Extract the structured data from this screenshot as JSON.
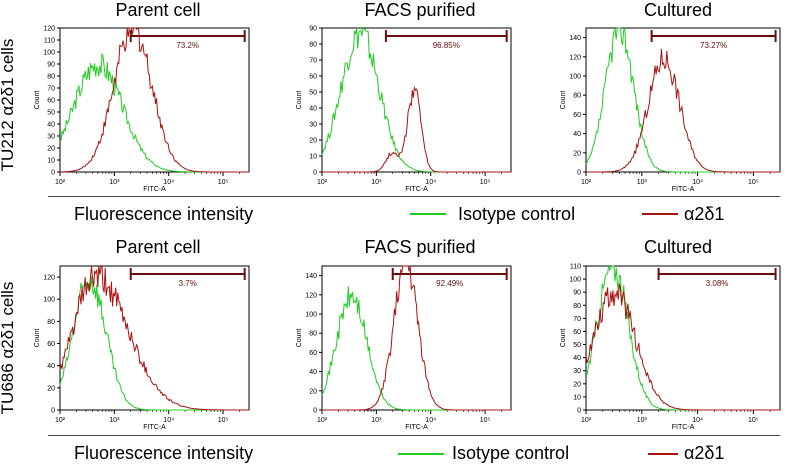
{
  "row_labels": [
    "TU212  α2δ1 cells",
    "TU686  α2δ1 cells"
  ],
  "legend": {
    "xlabel": "Fluorescence intensity",
    "isotype": "Isotype control",
    "marker": "α2δ1",
    "isotype_color": "#22cc22",
    "marker_color": "#aa1111"
  },
  "chart_data": [
    {
      "type": "area",
      "title": "Parent cell",
      "row": "TU212",
      "xlabel": "FITC-A",
      "ylabel": "Count",
      "xscale": "log",
      "xlim": [
        100,
        300000
      ],
      "ylim": [
        0,
        120
      ],
      "yticks": [
        0,
        10,
        20,
        30,
        40,
        50,
        60,
        70,
        80,
        90,
        100,
        110,
        120
      ],
      "xticks": [
        "10²",
        "10³",
        "10⁴",
        "10⁵"
      ],
      "gate": {
        "from": 2000,
        "to": 250000,
        "label": "73.2%"
      },
      "series": [
        {
          "name": "Isotype control",
          "peak_x": 500,
          "peak_y": 90,
          "width": 0.45
        },
        {
          "name": "α2δ1",
          "peak_x": 2200,
          "peak_y": 120,
          "width": 0.35
        }
      ]
    },
    {
      "type": "area",
      "title": "FACS purified",
      "row": "TU212",
      "xlabel": "FITC-A",
      "ylabel": "Count",
      "xscale": "log",
      "xlim": [
        100,
        300000
      ],
      "ylim": [
        0,
        90
      ],
      "yticks": [
        0,
        10,
        20,
        30,
        40,
        50,
        60,
        70,
        80,
        90
      ],
      "xticks": [
        "10²",
        "10³",
        "10⁴",
        "10⁵"
      ],
      "gate": {
        "from": 1500,
        "to": 250000,
        "label": "96.85%"
      },
      "series": [
        {
          "name": "Isotype control",
          "peak_x": 500,
          "peak_y": 87,
          "width": 0.35
        },
        {
          "name": "α2δ1",
          "peak_x": 5000,
          "peak_y": 52,
          "width": 0.12
        }
      ]
    },
    {
      "type": "area",
      "title": "Cultured",
      "row": "TU212",
      "xlabel": "FITC-A",
      "ylabel": "Count",
      "xscale": "log",
      "xlim": [
        100,
        300000
      ],
      "ylim": [
        0,
        150
      ],
      "yticks": [
        0,
        20,
        40,
        60,
        80,
        100,
        120,
        140
      ],
      "xticks": [
        "10²",
        "10³",
        "10⁴",
        "10⁵"
      ],
      "gate": {
        "from": 1500,
        "to": 250000,
        "label": "73.27%"
      },
      "series": [
        {
          "name": "Isotype control",
          "peak_x": 400,
          "peak_y": 150,
          "width": 0.25
        },
        {
          "name": "α2δ1",
          "peak_x": 2500,
          "peak_y": 118,
          "width": 0.28
        }
      ]
    },
    {
      "type": "area",
      "title": "Parent cell",
      "row": "TU686",
      "xlabel": "FITC-A",
      "ylabel": "Count",
      "xscale": "log",
      "xlim": [
        100,
        300000
      ],
      "ylim": [
        0,
        130
      ],
      "yticks": [
        0,
        20,
        40,
        60,
        80,
        100,
        120
      ],
      "xticks": [
        "10²",
        "10³",
        "10⁴",
        "10⁵"
      ],
      "gate": {
        "from": 2000,
        "to": 250000,
        "label": "3.7%"
      },
      "series": [
        {
          "name": "Isotype control",
          "peak_x": 350,
          "peak_y": 118,
          "width": 0.3
        },
        {
          "name": "α2δ1",
          "peak_x": 450,
          "peak_y": 120,
          "width": 0.42
        }
      ]
    },
    {
      "type": "area",
      "title": "FACS purified",
      "row": "TU686",
      "xlabel": "FITC-A",
      "ylabel": "Count",
      "xscale": "log",
      "xlim": [
        100,
        300000
      ],
      "ylim": [
        0,
        150
      ],
      "yticks": [
        0,
        20,
        40,
        60,
        80,
        100,
        120,
        140
      ],
      "xticks": [
        "10²",
        "10³",
        "10⁴",
        "10⁵"
      ],
      "gate": {
        "from": 2000,
        "to": 250000,
        "label": "92.49%"
      },
      "series": [
        {
          "name": "Isotype control",
          "peak_x": 350,
          "peak_y": 118,
          "width": 0.28
        },
        {
          "name": "α2δ1",
          "peak_x": 3500,
          "peak_y": 152,
          "width": 0.22
        }
      ]
    },
    {
      "type": "area",
      "title": "Cultured",
      "row": "TU686",
      "xlabel": "FITC-A",
      "ylabel": "Count",
      "xscale": "log",
      "xlim": [
        100,
        300000
      ],
      "ylim": [
        0,
        110
      ],
      "yticks": [
        0,
        10,
        20,
        30,
        40,
        50,
        60,
        70,
        80,
        90,
        100,
        110
      ],
      "xticks": [
        "10²",
        "10³",
        "10⁴",
        "10⁵"
      ],
      "gate": {
        "from": 2000,
        "to": 250000,
        "label": "3.08%"
      },
      "series": [
        {
          "name": "Isotype control",
          "peak_x": 300,
          "peak_y": 110,
          "width": 0.28
        },
        {
          "name": "α2δ1",
          "peak_x": 320,
          "peak_y": 90,
          "width": 0.38
        }
      ]
    }
  ]
}
